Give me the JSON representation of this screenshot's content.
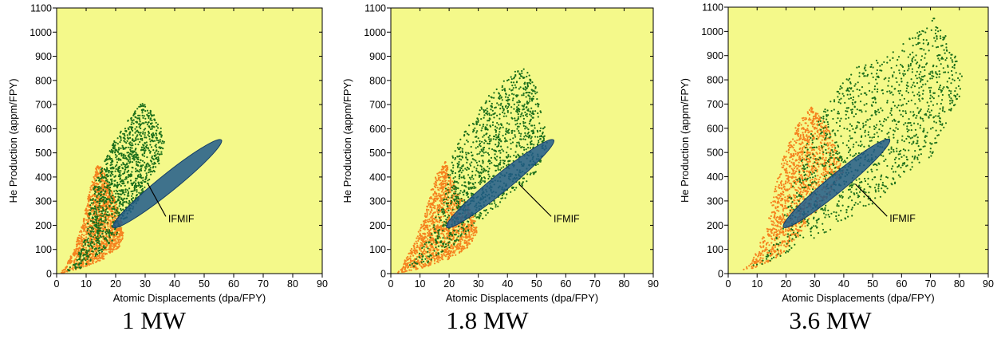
{
  "figure": {
    "captions": [
      "1 MW",
      "1.8 MW",
      "3.6 MW"
    ]
  },
  "chart_data": [
    {
      "type": "scatter",
      "title": "1 MW",
      "xlabel": "Atomic Displacements (dpa/FPY)",
      "ylabel": "He Production (appm/FPY)",
      "xlim": [
        0,
        90
      ],
      "ylim": [
        0,
        1100
      ],
      "xticks": [
        0,
        10,
        20,
        30,
        40,
        50,
        60,
        70,
        80,
        90
      ],
      "yticks": [
        0,
        100,
        200,
        300,
        400,
        500,
        600,
        700,
        800,
        900,
        1000,
        1100
      ],
      "grid": false,
      "background_color": "#f4f98a",
      "annotation": {
        "text": "IFMIF",
        "x": 37,
        "y": 230,
        "points_to": [
          31,
          370
        ]
      },
      "ifmif_region": {
        "x_range": [
          20,
          55
        ],
        "y_range": [
          200,
          545
        ],
        "color": "#1f5a8c"
      },
      "series": [
        {
          "color": "#f5821f",
          "envelope": [
            [
              1,
              0
            ],
            [
              3,
              30
            ],
            [
              6,
              100
            ],
            [
              9,
              220
            ],
            [
              11,
              340
            ],
            [
              13,
              430
            ],
            [
              14,
              460
            ],
            [
              16,
              420
            ],
            [
              20,
              300
            ],
            [
              22,
              220
            ],
            [
              23,
              160
            ],
            [
              21,
              100
            ],
            [
              16,
              60
            ],
            [
              10,
              30
            ],
            [
              5,
              10
            ],
            [
              1,
              0
            ]
          ]
        },
        {
          "color": "#1b6e1b",
          "envelope": [
            [
              2,
              5
            ],
            [
              6,
              40
            ],
            [
              10,
              160
            ],
            [
              12,
              350
            ],
            [
              16,
              460
            ],
            [
              20,
              560
            ],
            [
              25,
              650
            ],
            [
              29,
              710
            ],
            [
              33,
              660
            ],
            [
              37,
              560
            ],
            [
              35,
              450
            ],
            [
              31,
              370
            ],
            [
              25,
              250
            ],
            [
              20,
              150
            ],
            [
              15,
              80
            ],
            [
              8,
              20
            ],
            [
              2,
              5
            ]
          ]
        }
      ]
    },
    {
      "type": "scatter",
      "title": "1.8 MW",
      "xlabel": "Atomic Displacements (dpa/FPY)",
      "ylabel": "He Production (appm/FPY)",
      "xlim": [
        0,
        90
      ],
      "ylim": [
        0,
        1100
      ],
      "xticks": [
        0,
        10,
        20,
        30,
        40,
        50,
        60,
        70,
        80,
        90
      ],
      "yticks": [
        0,
        100,
        200,
        300,
        400,
        500,
        600,
        700,
        800,
        900,
        1000,
        1100
      ],
      "grid": false,
      "background_color": "#f4f98a",
      "annotation": {
        "text": "IFMIF",
        "x": 55,
        "y": 230,
        "points_to": [
          44,
          370
        ]
      },
      "ifmif_region": {
        "x_range": [
          20,
          55
        ],
        "y_range": [
          200,
          545
        ],
        "color": "#1f5a8c"
      },
      "series": [
        {
          "color": "#f5821f",
          "envelope": [
            [
              2,
              0
            ],
            [
              4,
              40
            ],
            [
              8,
              120
            ],
            [
              12,
              260
            ],
            [
              15,
              400
            ],
            [
              19,
              470
            ],
            [
              20,
              410
            ],
            [
              24,
              320
            ],
            [
              28,
              250
            ],
            [
              30,
              180
            ],
            [
              27,
              110
            ],
            [
              20,
              60
            ],
            [
              10,
              20
            ],
            [
              2,
              0
            ]
          ]
        },
        {
          "color": "#1b6e1b",
          "envelope": [
            [
              3,
              5
            ],
            [
              8,
              50
            ],
            [
              14,
              180
            ],
            [
              18,
              350
            ],
            [
              22,
              520
            ],
            [
              28,
              640
            ],
            [
              35,
              760
            ],
            [
              44,
              860
            ],
            [
              49,
              820
            ],
            [
              54,
              540
            ],
            [
              50,
              420
            ],
            [
              44,
              350
            ],
            [
              38,
              290
            ],
            [
              30,
              210
            ],
            [
              22,
              120
            ],
            [
              12,
              40
            ],
            [
              3,
              5
            ]
          ]
        }
      ]
    },
    {
      "type": "scatter",
      "title": "3.6 MW",
      "xlabel": "Atomic Displacements (dpa/FPY)",
      "ylabel": "He Production (appm/FPY)",
      "xlim": [
        0,
        90
      ],
      "ylim": [
        0,
        1100
      ],
      "xticks": [
        0,
        10,
        20,
        30,
        40,
        50,
        60,
        70,
        80,
        90
      ],
      "yticks": [
        0,
        100,
        200,
        300,
        400,
        500,
        600,
        700,
        800,
        900,
        1000,
        1100
      ],
      "grid": false,
      "background_color": "#f4f98a",
      "annotation": {
        "text": "IFMIF",
        "x": 55,
        "y": 230,
        "points_to": [
          44,
          370
        ]
      },
      "ifmif_region": {
        "x_range": [
          20,
          55
        ],
        "y_range": [
          200,
          545
        ],
        "color": "#1f5a8c"
      },
      "series": [
        {
          "color": "#f5821f",
          "envelope": [
            [
              5,
              15
            ],
            [
              8,
              50
            ],
            [
              12,
              150
            ],
            [
              15,
              300
            ],
            [
              19,
              480
            ],
            [
              24,
              620
            ],
            [
              29,
              690
            ],
            [
              34,
              620
            ],
            [
              38,
              500
            ],
            [
              40,
              420
            ],
            [
              36,
              340
            ],
            [
              30,
              250
            ],
            [
              24,
              150
            ],
            [
              18,
              70
            ],
            [
              10,
              25
            ],
            [
              5,
              15
            ]
          ]
        },
        {
          "color": "#1b6e1b",
          "envelope": [
            [
              6,
              15
            ],
            [
              12,
              60
            ],
            [
              18,
              180
            ],
            [
              22,
              350
            ],
            [
              27,
              530
            ],
            [
              33,
              700
            ],
            [
              42,
              840
            ],
            [
              55,
              900
            ],
            [
              66,
              1000
            ],
            [
              71,
              1060
            ],
            [
              77,
              960
            ],
            [
              81,
              820
            ],
            [
              80,
              720
            ],
            [
              75,
              600
            ],
            [
              70,
              480
            ],
            [
              60,
              400
            ],
            [
              52,
              300
            ],
            [
              45,
              250
            ],
            [
              38,
              200
            ],
            [
              28,
              130
            ],
            [
              18,
              60
            ],
            [
              10,
              25
            ],
            [
              6,
              15
            ]
          ]
        }
      ]
    }
  ]
}
